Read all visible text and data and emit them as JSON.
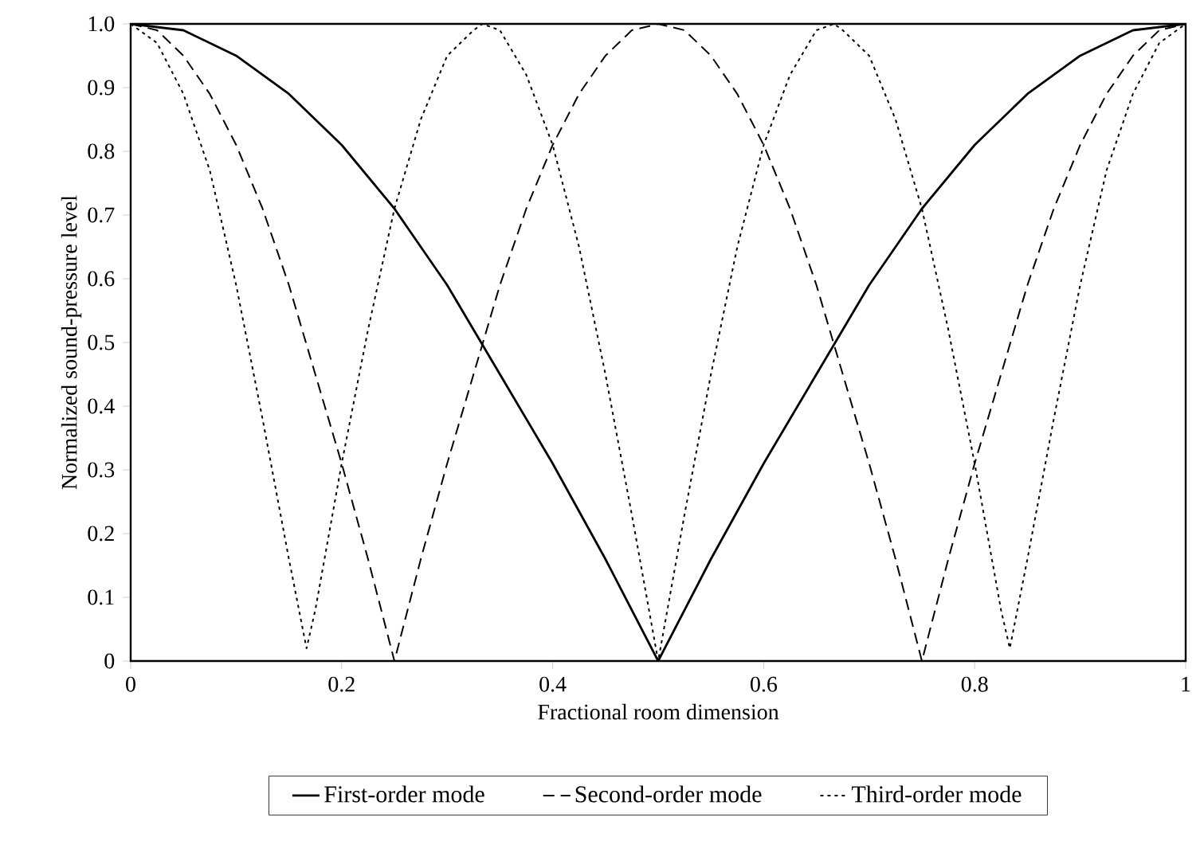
{
  "chart_data": {
    "type": "line",
    "xlabel": "Fractional room dimension",
    "ylabel": "Normalized sound-pressure level",
    "xlim": [
      0,
      1
    ],
    "ylim": [
      0,
      1
    ],
    "xticks": [
      0,
      0.2,
      0.4,
      0.6,
      0.8,
      1
    ],
    "yticks": [
      0,
      0.1,
      0.2,
      0.3,
      0.4,
      0.5,
      0.6,
      0.7,
      0.8,
      0.9,
      {
        "value": 1,
        "label": "1.0"
      }
    ],
    "grid": false,
    "legend": "bottom",
    "marker": "none",
    "series": [
      {
        "name": "First-order mode",
        "color": "#000000",
        "line_style": "solid",
        "x": [
          0,
          0.05,
          0.1,
          0.15,
          0.2,
          0.25,
          0.3,
          0.35,
          0.4,
          0.45,
          0.5,
          0.55,
          0.6,
          0.65,
          0.7,
          0.75,
          0.8,
          0.85,
          0.9,
          0.95,
          1
        ],
        "values": [
          1,
          0.99,
          0.95,
          0.89,
          0.81,
          0.71,
          0.59,
          0.45,
          0.31,
          0.16,
          0,
          0.16,
          0.31,
          0.45,
          0.59,
          0.71,
          0.81,
          0.89,
          0.95,
          0.99,
          1
        ]
      },
      {
        "name": "Second-order mode",
        "color": "#000000",
        "line_style": "dashed",
        "x": [
          0,
          0.025,
          0.05,
          0.075,
          0.1,
          0.125,
          0.15,
          0.175,
          0.2,
          0.225,
          0.25,
          0.275,
          0.3,
          0.325,
          0.35,
          0.375,
          0.4,
          0.425,
          0.45,
          0.475,
          0.5,
          0.525,
          0.55,
          0.575,
          0.6,
          0.625,
          0.65,
          0.675,
          0.7,
          0.725,
          0.75,
          0.775,
          0.8,
          0.825,
          0.85,
          0.875,
          0.9,
          0.925,
          0.95,
          0.975,
          1
        ],
        "values": [
          1,
          0.99,
          0.95,
          0.89,
          0.81,
          0.71,
          0.59,
          0.45,
          0.31,
          0.16,
          0,
          0.16,
          0.31,
          0.45,
          0.59,
          0.71,
          0.81,
          0.89,
          0.95,
          0.99,
          1,
          0.99,
          0.95,
          0.89,
          0.81,
          0.71,
          0.59,
          0.45,
          0.31,
          0.16,
          0,
          0.16,
          0.31,
          0.45,
          0.59,
          0.71,
          0.81,
          0.89,
          0.95,
          0.99,
          1
        ]
      },
      {
        "name": "Third-order mode",
        "color": "#000000",
        "line_style": "dotted",
        "x": [
          0,
          0.025,
          0.05,
          0.075,
          0.1,
          0.125,
          0.15,
          0.1667,
          0.175,
          0.2,
          0.225,
          0.25,
          0.275,
          0.3,
          0.325,
          0.3333,
          0.35,
          0.375,
          0.4,
          0.425,
          0.45,
          0.475,
          0.5,
          0.525,
          0.55,
          0.575,
          0.6,
          0.625,
          0.65,
          0.6667,
          0.675,
          0.7,
          0.725,
          0.75,
          0.775,
          0.8,
          0.825,
          0.8333,
          0.85,
          0.875,
          0.9,
          0.925,
          0.95,
          0.975,
          1
        ],
        "values": [
          1,
          0.97,
          0.89,
          0.77,
          0.59,
          0.38,
          0.16,
          0.02,
          0.08,
          0.31,
          0.52,
          0.71,
          0.85,
          0.95,
          0.99,
          1,
          0.99,
          0.92,
          0.81,
          0.65,
          0.45,
          0.23,
          0,
          0.23,
          0.45,
          0.65,
          0.81,
          0.92,
          0.99,
          1,
          0.99,
          0.95,
          0.85,
          0.71,
          0.52,
          0.31,
          0.08,
          0.02,
          0.16,
          0.38,
          0.59,
          0.77,
          0.89,
          0.97,
          1
        ]
      }
    ]
  }
}
